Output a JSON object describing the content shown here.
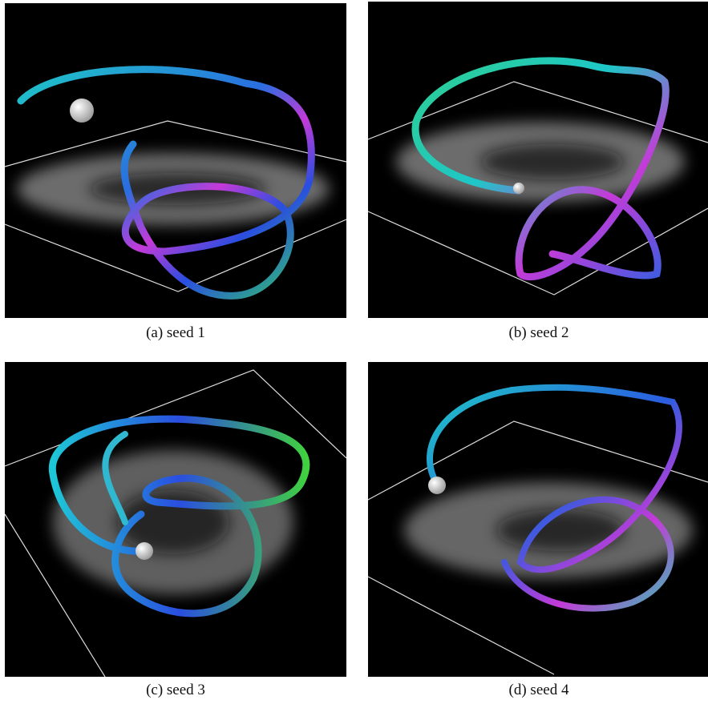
{
  "figure": {
    "panels": [
      {
        "caption": "(a) seed 1"
      },
      {
        "caption": "(b) seed 2"
      },
      {
        "caption": "(c) seed 3"
      },
      {
        "caption": "(d) seed 4"
      }
    ]
  }
}
